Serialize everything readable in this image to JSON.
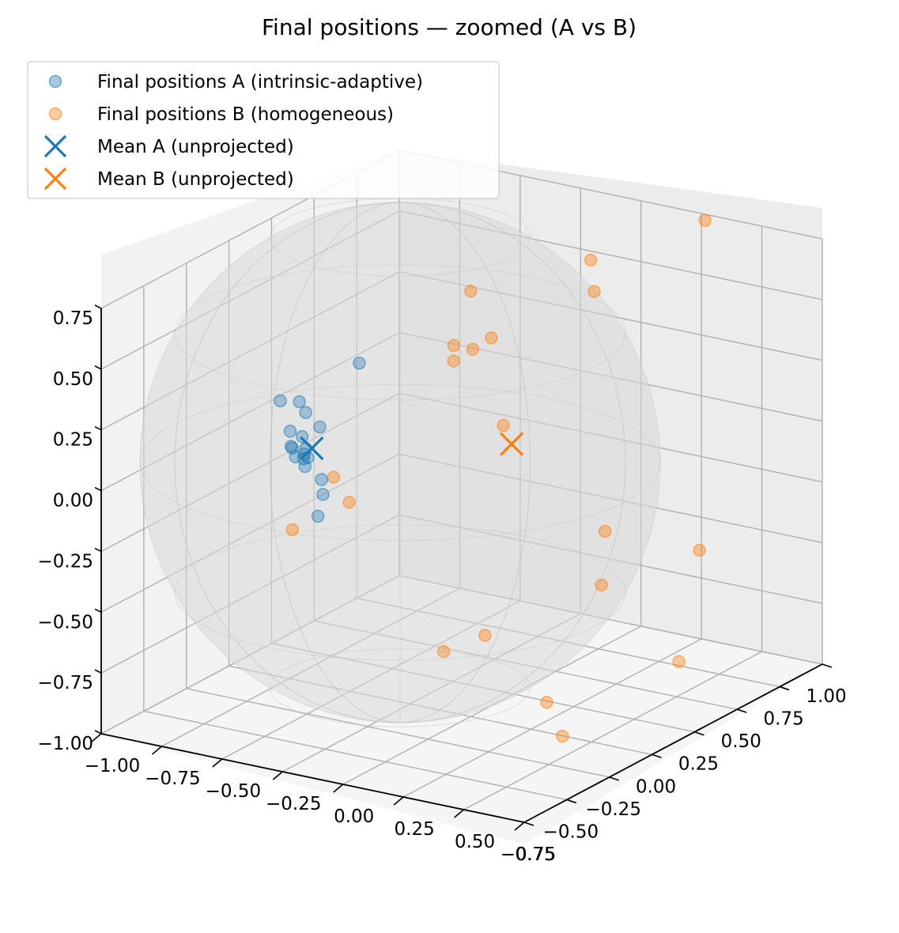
{
  "chart_data": {
    "type": "scatter",
    "title": "Final positions — zoomed (A vs B)",
    "xlabel": "",
    "ylabel": "",
    "zlabel": "",
    "xlim": [
      -0.75,
      1.0
    ],
    "ylim": [
      -1.0,
      0.75
    ],
    "zlim": [
      -1.0,
      0.75
    ],
    "xticks": [
      "−0.75",
      "−0.50",
      "−0.25",
      "0.00",
      "0.25",
      "0.50",
      "0.75",
      "1.00"
    ],
    "yticks": [
      "−1.00",
      "−0.75",
      "−0.50",
      "−0.25",
      "0.00",
      "0.25",
      "0.50",
      "0.75"
    ],
    "zticks": [
      "−1.00",
      "−0.75",
      "−0.50",
      "−0.25",
      "0.00",
      "0.25",
      "0.50",
      "0.75"
    ],
    "grid": true,
    "legend_position": "top-left",
    "reference_surface": "unit sphere",
    "series": [
      {
        "name": "Final positions A (intrinsic-adaptive)",
        "color": "#1f77b4",
        "marker": "circle",
        "points": [
          [
            0.62,
            -0.2,
            0.55
          ],
          [
            0.66,
            -0.42,
            0.36
          ],
          [
            0.71,
            -0.3,
            0.3
          ],
          [
            0.58,
            -0.45,
            0.28
          ],
          [
            0.7,
            -0.38,
            0.24
          ],
          [
            0.75,
            -0.33,
            0.22
          ],
          [
            0.73,
            -0.4,
            0.2
          ],
          [
            0.68,
            -0.44,
            0.18
          ],
          [
            0.78,
            -0.3,
            0.2
          ],
          [
            0.72,
            -0.36,
            0.16
          ],
          [
            0.66,
            -0.4,
            0.15
          ],
          [
            0.74,
            -0.34,
            0.14
          ],
          [
            0.64,
            -0.45,
            0.12
          ],
          [
            0.7,
            -0.3,
            0.08
          ],
          [
            0.72,
            -0.28,
            0.03
          ],
          [
            0.65,
            -0.35,
            -0.1
          ],
          [
            0.8,
            -0.4,
            0.42
          ],
          [
            0.6,
            -0.5,
            0.2
          ]
        ]
      },
      {
        "name": "Final positions B (homogeneous)",
        "color": "#ff7f0e",
        "marker": "circle",
        "points": [
          [
            -0.7,
            0.3,
            0.75
          ],
          [
            -0.1,
            0.25,
            0.8
          ],
          [
            -0.05,
            0.3,
            0.7
          ],
          [
            0.25,
            0.0,
            0.75
          ],
          [
            0.2,
            0.05,
            0.55
          ],
          [
            0.38,
            0.1,
            0.58
          ],
          [
            0.42,
            0.05,
            0.6
          ],
          [
            0.35,
            0.0,
            0.5
          ],
          [
            0.2,
            0.1,
            0.2
          ],
          [
            0.7,
            -0.25,
            0.1
          ],
          [
            0.68,
            -0.2,
            0.0
          ],
          [
            0.8,
            -0.35,
            -0.1
          ],
          [
            -0.1,
            0.7,
            -0.3
          ],
          [
            0.1,
            0.45,
            -0.2
          ],
          [
            0.05,
            0.4,
            -0.45
          ],
          [
            0.45,
            0.2,
            -0.55
          ],
          [
            0.55,
            0.1,
            -0.6
          ],
          [
            -0.05,
            0.65,
            -0.75
          ],
          [
            0.3,
            0.35,
            -0.85
          ],
          [
            0.35,
            0.45,
            -0.95
          ]
        ]
      },
      {
        "name": "Mean A (unprojected)",
        "color": "#1f77b4",
        "marker": "x",
        "points": [
          [
            0.7,
            -0.34,
            0.2
          ]
        ]
      },
      {
        "name": "Mean B (unprojected)",
        "color": "#ff7f0e",
        "marker": "x",
        "points": [
          [
            0.18,
            0.12,
            0.12
          ]
        ]
      }
    ]
  }
}
